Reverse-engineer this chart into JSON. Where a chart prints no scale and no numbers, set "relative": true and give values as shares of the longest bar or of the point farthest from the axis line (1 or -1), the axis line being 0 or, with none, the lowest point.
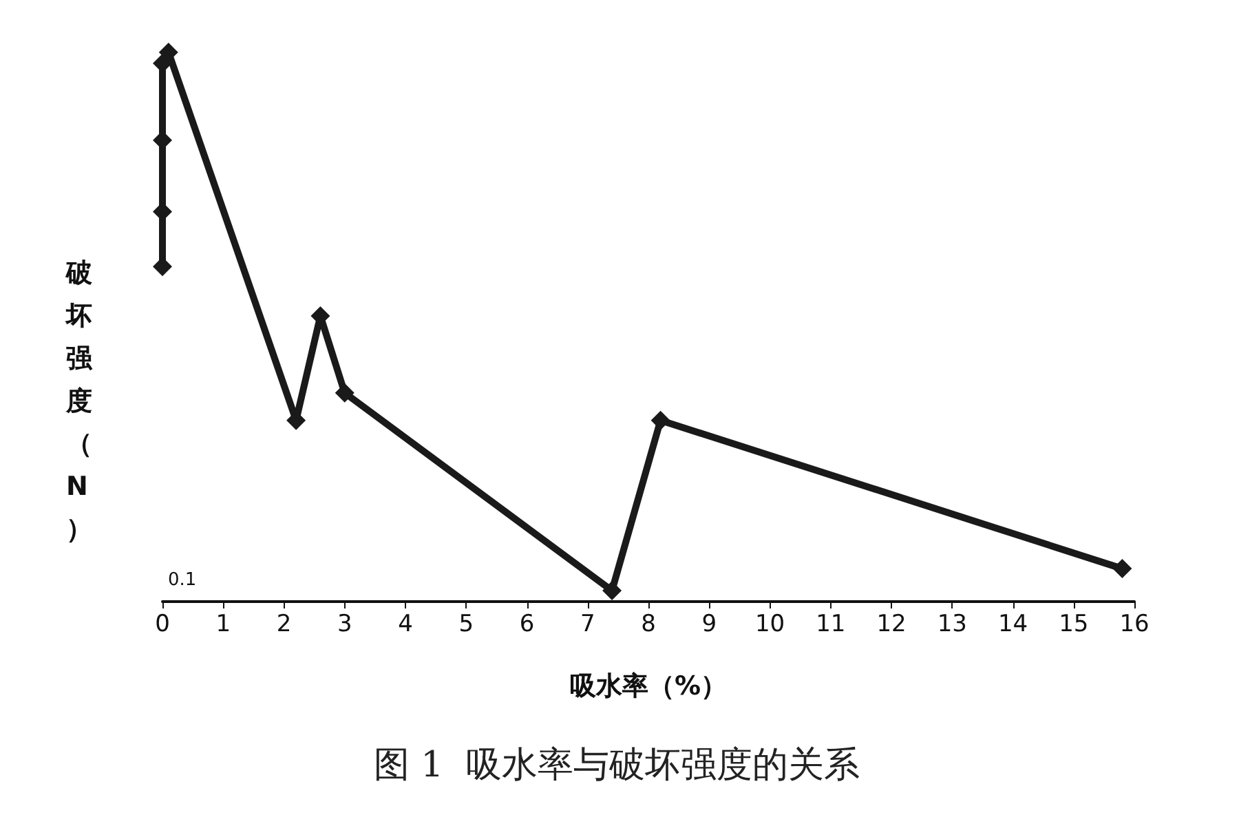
{
  "chart_data": {
    "type": "line",
    "title": "图 1  吸水率与破坏强度的关系",
    "xlabel": "吸水率（%）",
    "ylabel": "破坏强度（N）",
    "annotations": [
      "0.1"
    ],
    "x": [
      0,
      0,
      0,
      0,
      0.1,
      2.2,
      2.6,
      3.0,
      7.4,
      8.2,
      15.8
    ],
    "series": [
      {
        "color": "#1a1a1a",
        "values": [
          0.61,
          0.71,
          0.84,
          0.98,
          1,
          0.33,
          0.52,
          0.38,
          0.02,
          0.33,
          0.06
        ]
      }
    ],
    "relative": true,
    "xlim": [
      0,
      16
    ],
    "xticks": [
      0,
      1,
      2,
      3,
      4,
      5,
      6,
      7,
      8,
      9,
      10,
      11,
      12,
      13,
      14,
      15,
      16
    ],
    "grid": false,
    "marker": "diamond",
    "line_style": "solid"
  }
}
